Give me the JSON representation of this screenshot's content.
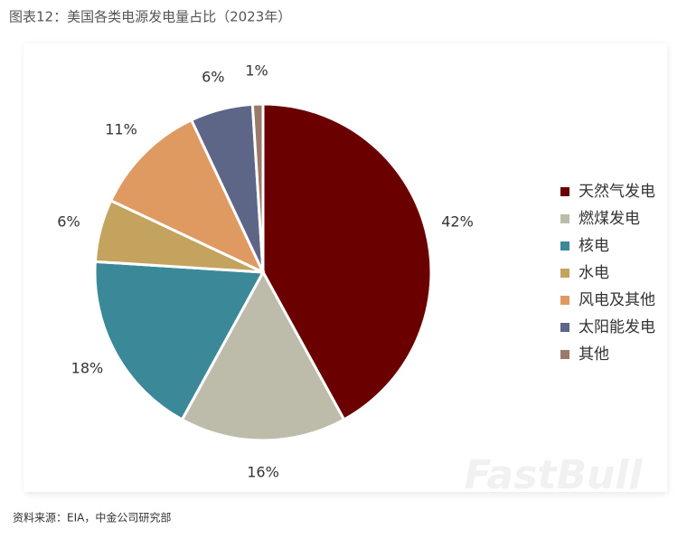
{
  "chart_data": {
    "type": "pie",
    "title": "图表12：美国各类电源发电量占比（2023年）",
    "categories": [
      "天然气发电",
      "燃煤发电",
      "核电",
      "水电",
      "风电及其他",
      "太阳能发电",
      "其他"
    ],
    "values": [
      42,
      16,
      18,
      6,
      11,
      6,
      1
    ],
    "value_labels": [
      "42%",
      "16%",
      "18%",
      "6%",
      "11%",
      "6%",
      "1%"
    ],
    "colors": [
      "#6b0000",
      "#bdbcaa",
      "#3b8898",
      "#c4a35e",
      "#df9a62",
      "#5e6687",
      "#9a7a6a"
    ],
    "legend": "right",
    "source": "资料来源：EIA，中金公司研究部",
    "watermark": "FastBull"
  }
}
